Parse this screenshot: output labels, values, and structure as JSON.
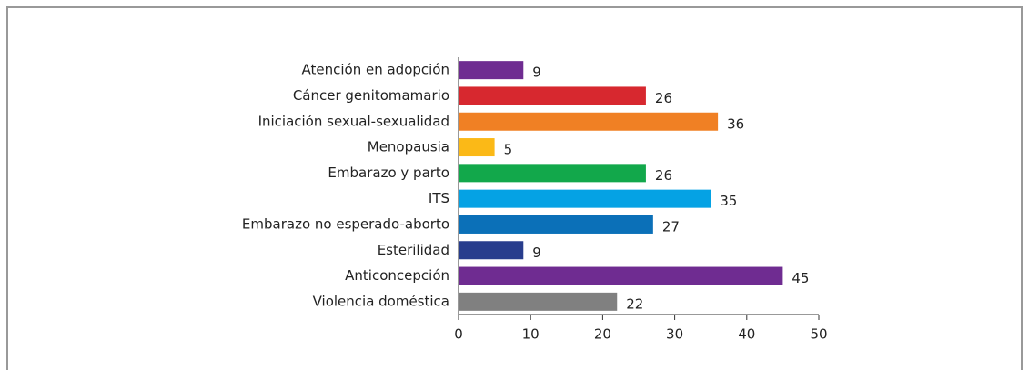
{
  "chart_data": {
    "type": "bar",
    "orientation": "horizontal",
    "categories": [
      "Atención en adopción",
      "Cáncer genitomamario",
      "Iniciación sexual-sexualidad",
      "Menopausia",
      "Embarazo y parto",
      "ITS",
      "Embarazo no esperado-aborto",
      "Esterilidad",
      "Anticoncepción",
      "Violencia doméstica"
    ],
    "values": [
      9,
      26,
      36,
      5,
      26,
      35,
      27,
      9,
      45,
      22
    ],
    "colors": [
      "#6f2c91",
      "#d7282f",
      "#f08024",
      "#fbb917",
      "#12a84b",
      "#05a2e4",
      "#0b70b8",
      "#283d8d",
      "#6f2c91",
      "#808080"
    ],
    "xlim": [
      0,
      50
    ],
    "xticks": [
      0,
      10,
      20,
      30,
      40,
      50
    ],
    "grid": false
  }
}
